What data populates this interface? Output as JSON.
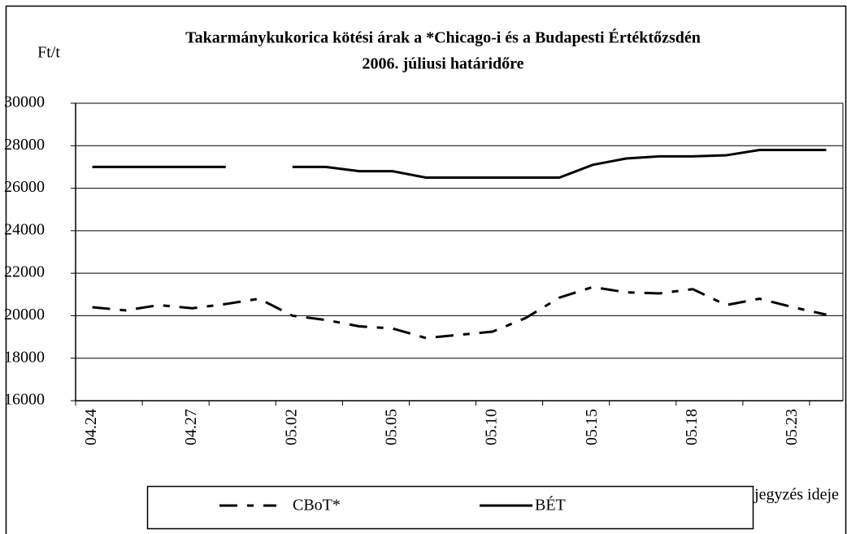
{
  "chart_data": {
    "type": "line",
    "title": [
      "Takarmánykukorica kötési árak a *Chicago-i és a Budapesti Értéktőzsdén",
      "2006. júliusi határidőre"
    ],
    "ylabel": "Ft/t",
    "xlabel": "jegyzés ideje",
    "categories": [
      "04.24",
      null,
      null,
      "04.27",
      null,
      null,
      "05.02",
      null,
      null,
      "05.05",
      null,
      null,
      "05.10",
      null,
      null,
      "05.15",
      null,
      null,
      "05.18",
      null,
      null,
      "05.23",
      null
    ],
    "series": [
      {
        "name": "CBoT*",
        "color": "#000000",
        "dash": true,
        "values": [
          20400,
          20250,
          20500,
          20350,
          20550,
          20800,
          20000,
          19800,
          19500,
          19400,
          18950,
          19100,
          19250,
          19900,
          20850,
          21350,
          21100,
          21050,
          21250,
          20500,
          20800,
          20400,
          20050
        ]
      },
      {
        "name": "BÉT",
        "color": "#000000",
        "dash": false,
        "values": [
          27000,
          27000,
          27000,
          27000,
          27000,
          null,
          27000,
          27000,
          26800,
          26800,
          26500,
          26500,
          26500,
          26500,
          26500,
          27100,
          27400,
          27500,
          27500,
          27550,
          27800,
          27800,
          27800
        ]
      }
    ],
    "ylim": [
      16000,
      30000
    ],
    "yticks": [
      16000,
      18000,
      20000,
      22000,
      24000,
      26000,
      28000,
      30000
    ],
    "grid": true
  }
}
